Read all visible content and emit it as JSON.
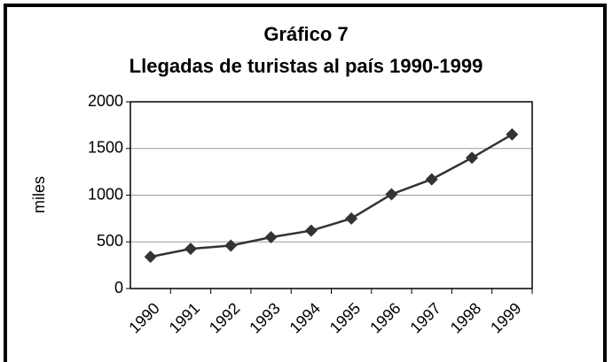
{
  "chart_data": {
    "type": "line",
    "title": "Gráfico 7",
    "subtitle": "Llegadas de turistas al país 1990-1999",
    "y_label": "miles",
    "categories": [
      "1990",
      "1991",
      "1992",
      "1993",
      "1994",
      "1995",
      "1996",
      "1997",
      "1998",
      "1999"
    ],
    "series": [
      {
        "name": "Llegadas",
        "color": "#333333",
        "values": [
          340,
          425,
          460,
          550,
          620,
          750,
          1010,
          1170,
          1400,
          1650
        ]
      }
    ],
    "ylim": [
      0,
      2000
    ],
    "yticks": [
      0,
      500,
      1000,
      1500,
      2000
    ],
    "grid": true
  }
}
